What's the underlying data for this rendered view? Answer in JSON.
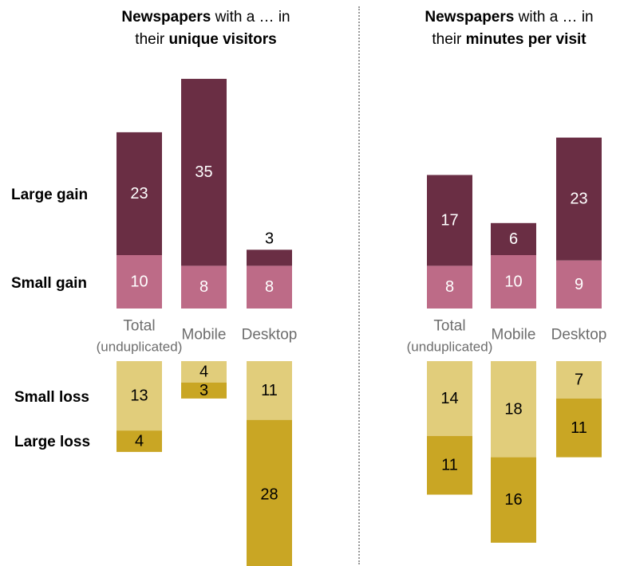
{
  "row_labels": {
    "large_gain": "Large gain",
    "small_gain": "Small gain",
    "small_loss": "Small loss",
    "large_loss": "Large loss"
  },
  "colors": {
    "large_gain": "#6a2e44",
    "small_gain": "#bd6b87",
    "small_loss": "#e1cd7b",
    "large_loss": "#c9a624",
    "category_text": "#6d6d6d"
  },
  "chart_data": [
    {
      "type": "bar",
      "title_parts": [
        {
          "text": "Newspapers",
          "bold": true
        },
        {
          "text": " with a … in",
          "bold": false
        },
        {
          "text": "BR",
          "bold": false
        },
        {
          "text": "their ",
          "bold": false
        },
        {
          "text": "unique visitors",
          "bold": true
        }
      ],
      "categories": [
        {
          "line1": "Total",
          "line2": "(unduplicated)"
        },
        {
          "line1": "Mobile",
          "line2": ""
        },
        {
          "line1": "Desktop",
          "line2": ""
        }
      ],
      "series": [
        {
          "name": "Large gain",
          "key": "large_gain",
          "values": [
            23,
            35,
            3
          ]
        },
        {
          "name": "Small gain",
          "key": "small_gain",
          "values": [
            10,
            8,
            8
          ]
        },
        {
          "name": "Small loss",
          "key": "small_loss",
          "values": [
            13,
            4,
            11
          ]
        },
        {
          "name": "Large loss",
          "key": "large_loss",
          "values": [
            4,
            3,
            28
          ]
        }
      ]
    },
    {
      "type": "bar",
      "title_parts": [
        {
          "text": "Newspapers",
          "bold": true
        },
        {
          "text": " with a … in",
          "bold": false
        },
        {
          "text": "BR",
          "bold": false
        },
        {
          "text": "their ",
          "bold": false
        },
        {
          "text": "minutes per visit",
          "bold": true
        }
      ],
      "categories": [
        {
          "line1": "Total",
          "line2": "(unduplicated)"
        },
        {
          "line1": "Mobile",
          "line2": ""
        },
        {
          "line1": "Desktop",
          "line2": ""
        }
      ],
      "series": [
        {
          "name": "Large gain",
          "key": "large_gain",
          "values": [
            17,
            6,
            23
          ]
        },
        {
          "name": "Small gain",
          "key": "small_gain",
          "values": [
            8,
            10,
            9
          ]
        },
        {
          "name": "Small loss",
          "key": "small_loss",
          "values": [
            14,
            18,
            7
          ]
        },
        {
          "name": "Large loss",
          "key": "large_loss",
          "values": [
            11,
            16,
            11
          ]
        }
      ]
    }
  ]
}
